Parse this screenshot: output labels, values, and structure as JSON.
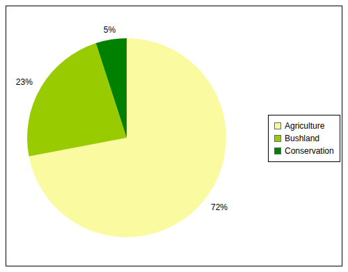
{
  "chart_data": {
    "type": "pie",
    "categories": [
      "Agriculture",
      "Bushland",
      "Conservation"
    ],
    "values": [
      72,
      23,
      5
    ],
    "value_labels": [
      "72%",
      "23%",
      "5%"
    ],
    "colors": [
      "#FAFAA0",
      "#99CC00",
      "#008000"
    ],
    "data_labels": true,
    "legend": "right"
  }
}
